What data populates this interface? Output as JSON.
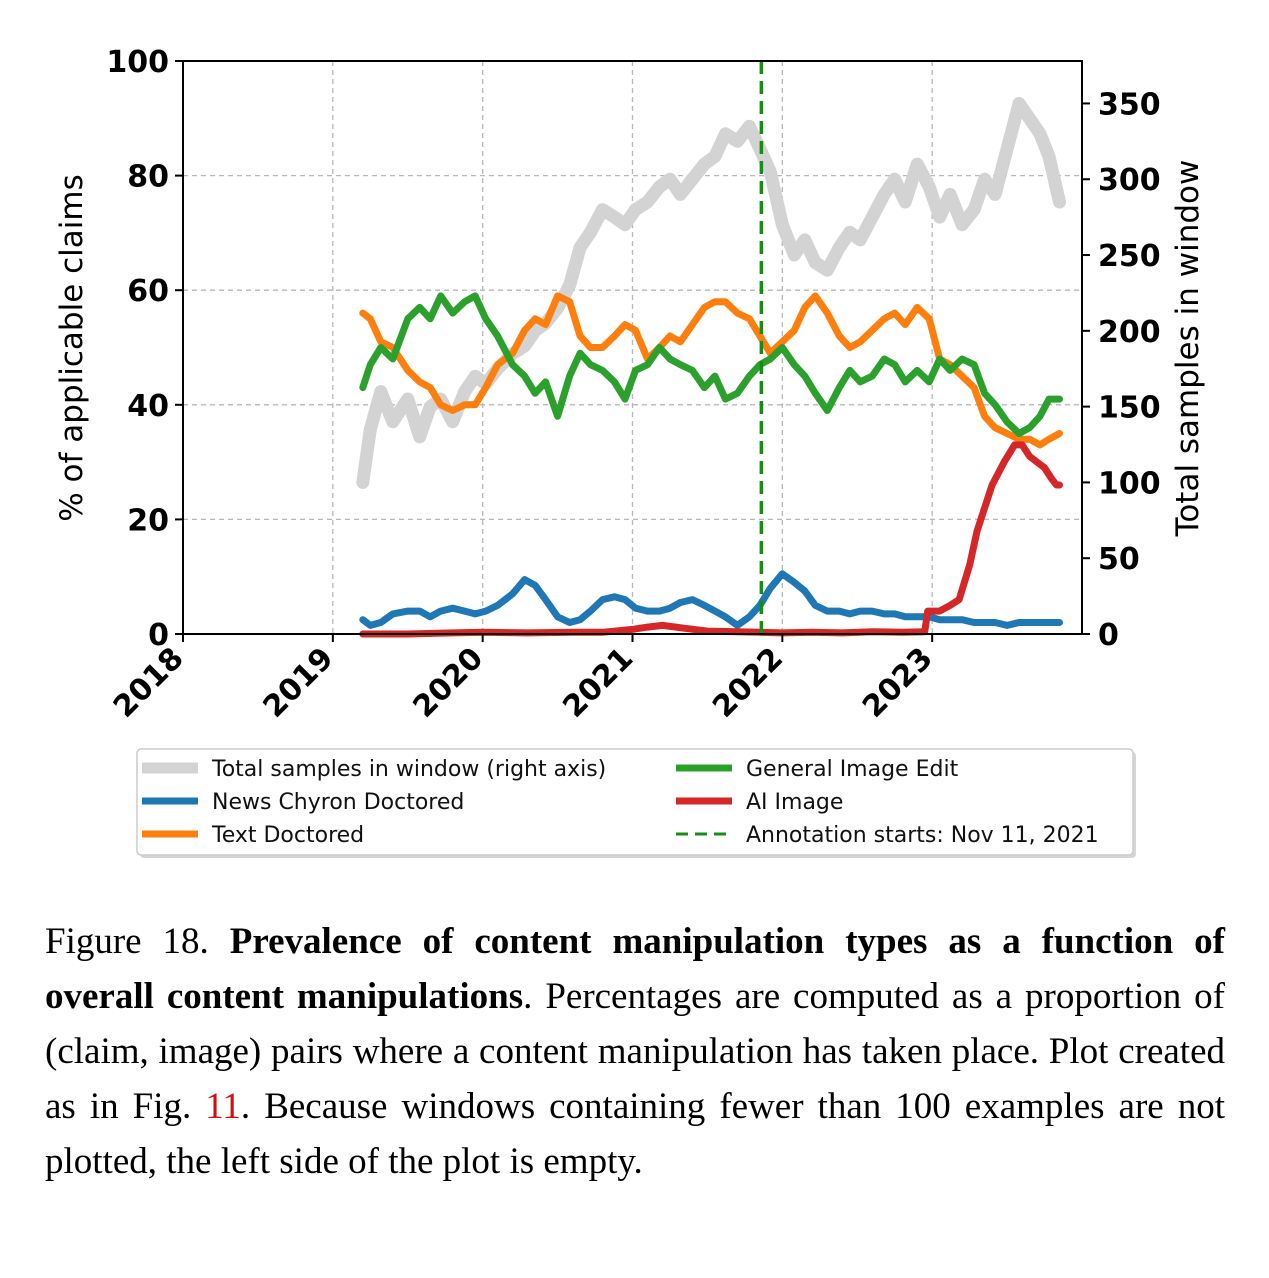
{
  "chart_data": {
    "type": "line",
    "x_ticks": [
      "2018",
      "2019",
      "2020",
      "2021",
      "2022",
      "2023"
    ],
    "xlim": [
      2018.0,
      2024.0
    ],
    "y_left": {
      "label": "% of applicable claims",
      "ticks": [
        "0",
        "20",
        "40",
        "60",
        "80",
        "100"
      ],
      "ylim": [
        0,
        100
      ]
    },
    "y_right": {
      "label": "Total samples in window",
      "ticks": [
        "0",
        "50",
        "100",
        "150",
        "200",
        "250",
        "300",
        "350"
      ],
      "ylim": [
        0,
        378
      ]
    },
    "grid": true,
    "vline": {
      "x": 2021.86,
      "label": "Annotation starts: Nov 11, 2021",
      "color": "#1a8a1a"
    },
    "series": [
      {
        "name": "Total samples in window (right axis)",
        "axis": "right",
        "color": "#d3d3d3",
        "x": [
          2019.2,
          2019.25,
          2019.32,
          2019.4,
          2019.5,
          2019.58,
          2019.65,
          2019.72,
          2019.8,
          2019.88,
          2019.95,
          2020.02,
          2020.1,
          2020.2,
          2020.28,
          2020.35,
          2020.42,
          2020.5,
          2020.58,
          2020.65,
          2020.72,
          2020.8,
          2020.88,
          2020.95,
          2021.02,
          2021.1,
          2021.18,
          2021.25,
          2021.32,
          2021.4,
          2021.48,
          2021.55,
          2021.62,
          2021.7,
          2021.78,
          2021.85,
          2021.92,
          2022.0,
          2022.08,
          2022.15,
          2022.22,
          2022.3,
          2022.38,
          2022.45,
          2022.52,
          2022.6,
          2022.68,
          2022.75,
          2022.82,
          2022.9,
          2022.98,
          2023.05,
          2023.12,
          2023.2,
          2023.28,
          2023.35,
          2023.42,
          2023.5,
          2023.58,
          2023.65,
          2023.72,
          2023.78,
          2023.85
        ],
        "values": [
          100,
          135,
          160,
          140,
          155,
          130,
          150,
          155,
          140,
          160,
          170,
          165,
          175,
          185,
          190,
          200,
          205,
          215,
          230,
          255,
          265,
          280,
          275,
          270,
          280,
          285,
          295,
          300,
          290,
          300,
          310,
          315,
          330,
          325,
          335,
          320,
          305,
          270,
          250,
          260,
          245,
          240,
          255,
          265,
          260,
          275,
          290,
          300,
          285,
          310,
          295,
          275,
          290,
          270,
          280,
          300,
          290,
          320,
          350,
          340,
          330,
          315,
          285
        ]
      },
      {
        "name": "News Chyron Doctored",
        "axis": "left",
        "color": "#1f77b4",
        "x": [
          2019.2,
          2019.25,
          2019.32,
          2019.4,
          2019.5,
          2019.58,
          2019.65,
          2019.72,
          2019.8,
          2019.88,
          2019.95,
          2020.02,
          2020.1,
          2020.2,
          2020.28,
          2020.35,
          2020.42,
          2020.5,
          2020.58,
          2020.65,
          2020.72,
          2020.8,
          2020.88,
          2020.95,
          2021.02,
          2021.1,
          2021.18,
          2021.25,
          2021.32,
          2021.4,
          2021.48,
          2021.55,
          2021.62,
          2021.7,
          2021.78,
          2021.85,
          2021.92,
          2022.0,
          2022.08,
          2022.15,
          2022.22,
          2022.3,
          2022.38,
          2022.45,
          2022.52,
          2022.6,
          2022.68,
          2022.75,
          2022.82,
          2022.9,
          2022.98,
          2023.05,
          2023.12,
          2023.2,
          2023.28,
          2023.35,
          2023.42,
          2023.5,
          2023.58,
          2023.65,
          2023.72,
          2023.78,
          2023.85
        ],
        "values": [
          2.5,
          1.5,
          2,
          3.5,
          4,
          4,
          3,
          4,
          4.5,
          4,
          3.5,
          4,
          5,
          7,
          9.5,
          8.5,
          6,
          3,
          2,
          2.5,
          4,
          6,
          6.5,
          6,
          4.5,
          4,
          4,
          4.5,
          5.5,
          6,
          5,
          4,
          3,
          1.5,
          3,
          5,
          8,
          10.5,
          9,
          7.5,
          5,
          4,
          4,
          3.5,
          4,
          4,
          3.5,
          3.5,
          3,
          3,
          3,
          2.5,
          2.5,
          2.5,
          2,
          2,
          2,
          1.5,
          2,
          2,
          2,
          2,
          2
        ]
      },
      {
        "name": "Text Doctored",
        "axis": "left",
        "color": "#ff7f0e",
        "x": [
          2019.2,
          2019.25,
          2019.32,
          2019.4,
          2019.5,
          2019.58,
          2019.65,
          2019.72,
          2019.8,
          2019.88,
          2019.95,
          2020.02,
          2020.1,
          2020.2,
          2020.28,
          2020.35,
          2020.42,
          2020.5,
          2020.58,
          2020.65,
          2020.72,
          2020.8,
          2020.88,
          2020.95,
          2021.02,
          2021.1,
          2021.18,
          2021.25,
          2021.32,
          2021.4,
          2021.48,
          2021.55,
          2021.62,
          2021.7,
          2021.78,
          2021.85,
          2021.92,
          2022.0,
          2022.08,
          2022.15,
          2022.22,
          2022.3,
          2022.38,
          2022.45,
          2022.52,
          2022.6,
          2022.68,
          2022.75,
          2022.82,
          2022.9,
          2022.98,
          2023.05,
          2023.12,
          2023.2,
          2023.28,
          2023.35,
          2023.42,
          2023.5,
          2023.58,
          2023.65,
          2023.72,
          2023.78,
          2023.85
        ],
        "values": [
          56,
          55,
          51,
          50,
          46,
          44,
          43,
          40,
          39,
          40,
          40,
          43,
          47,
          49,
          53,
          55,
          54,
          59,
          58,
          52,
          50,
          50,
          52,
          54,
          53,
          48,
          50,
          52,
          51,
          54,
          57,
          58,
          58,
          56,
          55,
          52,
          49,
          51,
          53,
          57,
          59,
          56,
          52,
          50,
          51,
          53,
          55,
          56,
          54,
          57,
          55,
          48,
          47,
          45,
          43,
          38,
          36,
          35,
          34,
          34,
          33,
          34,
          35
        ]
      },
      {
        "name": "General Image Edit",
        "axis": "left",
        "color": "#2ca02c",
        "x": [
          2019.2,
          2019.25,
          2019.32,
          2019.4,
          2019.5,
          2019.58,
          2019.65,
          2019.72,
          2019.8,
          2019.88,
          2019.95,
          2020.02,
          2020.1,
          2020.2,
          2020.28,
          2020.35,
          2020.42,
          2020.5,
          2020.58,
          2020.65,
          2020.72,
          2020.8,
          2020.88,
          2020.95,
          2021.02,
          2021.1,
          2021.18,
          2021.25,
          2021.32,
          2021.4,
          2021.48,
          2021.55,
          2021.62,
          2021.7,
          2021.78,
          2021.85,
          2021.92,
          2022.0,
          2022.08,
          2022.15,
          2022.22,
          2022.3,
          2022.38,
          2022.45,
          2022.52,
          2022.6,
          2022.68,
          2022.75,
          2022.82,
          2022.9,
          2022.98,
          2023.05,
          2023.12,
          2023.2,
          2023.28,
          2023.35,
          2023.42,
          2023.5,
          2023.58,
          2023.65,
          2023.72,
          2023.78,
          2023.85
        ],
        "values": [
          43,
          47,
          50,
          48,
          55,
          57,
          55,
          59,
          56,
          58,
          59,
          55,
          52,
          47,
          45,
          42,
          44,
          38,
          45,
          49,
          47,
          46,
          44,
          41,
          46,
          47,
          50,
          48,
          47,
          46,
          43,
          45,
          41,
          42,
          45,
          47,
          48,
          50,
          47,
          45,
          42,
          39,
          43,
          46,
          44,
          45,
          48,
          47,
          44,
          46,
          44,
          48,
          46,
          48,
          47,
          42,
          40,
          37,
          35,
          36,
          38,
          41,
          41
        ]
      },
      {
        "name": "AI Image",
        "axis": "left",
        "color": "#d62728",
        "x": [
          2019.2,
          2019.5,
          2019.8,
          2020.0,
          2020.3,
          2020.6,
          2020.8,
          2021.0,
          2021.1,
          2021.2,
          2021.35,
          2021.5,
          2021.7,
          2021.85,
          2022.0,
          2022.2,
          2022.4,
          2022.6,
          2022.8,
          2022.95,
          2022.97,
          2023.05,
          2023.12,
          2023.18,
          2023.25,
          2023.3,
          2023.35,
          2023.4,
          2023.48,
          2023.55,
          2023.6,
          2023.65,
          2023.7,
          2023.75,
          2023.8,
          2023.83,
          2023.85
        ],
        "values": [
          0,
          0,
          0.2,
          0.3,
          0.2,
          0.3,
          0.3,
          0.8,
          1.2,
          1.5,
          1,
          0.5,
          0.4,
          0.3,
          0.2,
          0.3,
          0.2,
          0.4,
          0.3,
          0.4,
          4,
          4,
          5,
          6,
          12,
          18,
          22,
          26,
          30,
          33,
          33,
          31,
          30,
          29,
          27,
          26,
          26
        ]
      }
    ]
  },
  "legend": {
    "items": [
      {
        "label": "Total samples in window (right axis)",
        "color": "#d3d3d3",
        "style": "solid"
      },
      {
        "label": "News Chyron Doctored",
        "color": "#1f77b4",
        "style": "solid"
      },
      {
        "label": "Text Doctored",
        "color": "#ff7f0e",
        "style": "solid"
      },
      {
        "label": "General Image Edit",
        "color": "#2ca02c",
        "style": "solid"
      },
      {
        "label": "AI Image",
        "color": "#d62728",
        "style": "solid"
      },
      {
        "label": "Annotation starts: Nov 11, 2021",
        "color": "#1a8a1a",
        "style": "dashed"
      }
    ]
  },
  "caption": {
    "prefix": "Figure 18. ",
    "bold": "Prevalence of content manipulation types as a function of overall content manipulations",
    "middle": ". Percentages are computed as a proportion of (claim, image) pairs where a content manipulation has taken place. Plot created as in Fig. ",
    "ref": "11",
    "suffix": ". Because windows containing fewer than 100 examples are not plotted, the left side of the plot is empty."
  }
}
